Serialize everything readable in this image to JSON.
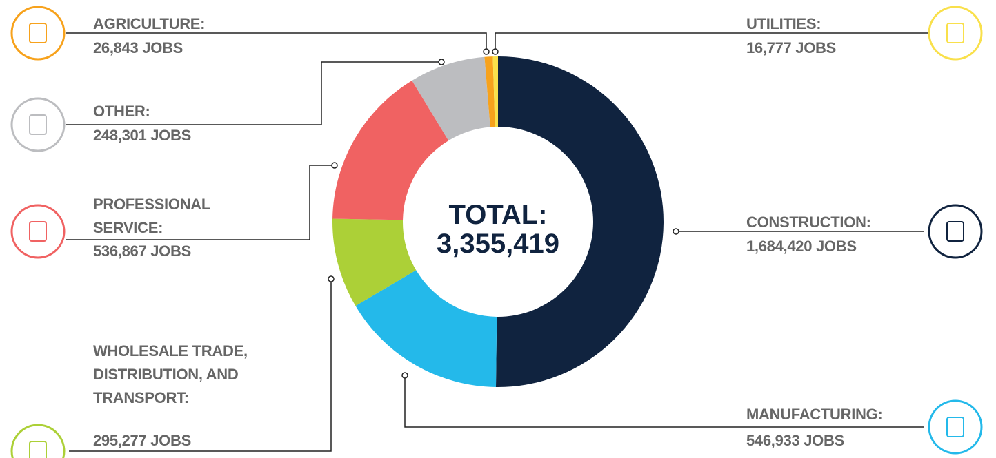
{
  "chart_data": {
    "type": "donut",
    "categories": [
      "CONSTRUCTION:",
      "MANUFACTURING:",
      "WHOLESALE TRADE, DISTRIBUTION, AND TRANSPORT:",
      "PROFESSIONAL SERVICE:",
      "OTHER:",
      "AGRICULTURE:",
      "UTILITIES:"
    ],
    "values": [
      1684420,
      546933,
      295277,
      536867,
      248301,
      26843,
      16777
    ],
    "value_labels": [
      "1,684,420 JOBS",
      "546,933 JOBS",
      "295,277 JOBS",
      "536,867 JOBS",
      "248,301 JOBS",
      "26,843 JOBS",
      "16,777 JOBS"
    ],
    "colors": [
      "#10233f",
      "#24b9ea",
      "#acd037",
      "#f06262",
      "#bcbdc0",
      "#f7a21c",
      "#f9e04b"
    ],
    "center_title": "TOTAL:",
    "center_value": "3,355,419"
  }
}
